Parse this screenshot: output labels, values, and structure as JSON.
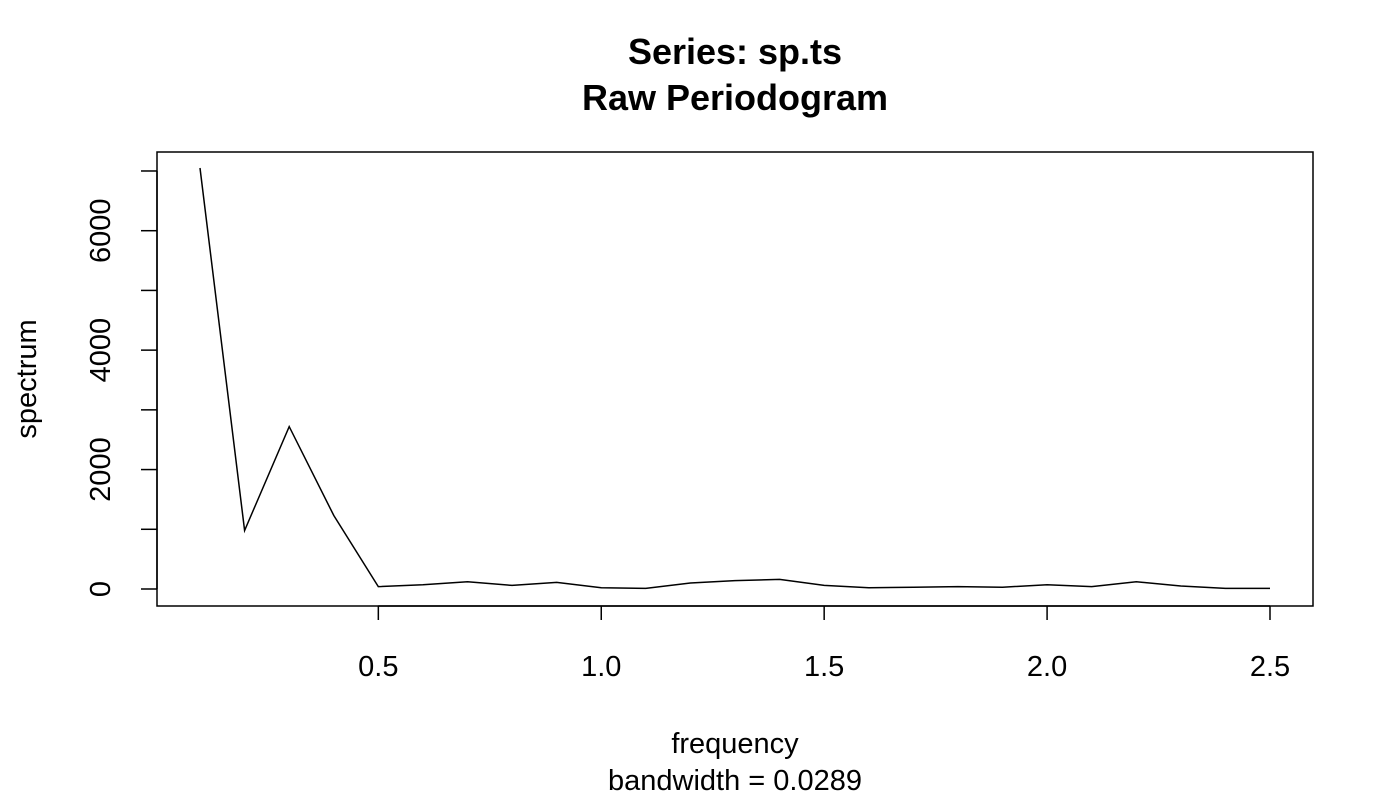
{
  "chart_data": {
    "type": "line",
    "title": "Series: sp.ts",
    "subtitle": "Raw Periodogram",
    "xlabel": "frequency",
    "xsublabel": "bandwidth = 0.0289",
    "ylabel": "spectrum",
    "xlim": [
      0.1,
      2.5
    ],
    "ylim": [
      0,
      7050
    ],
    "x_ticks": [
      0.5,
      1.0,
      1.5,
      2.0,
      2.5
    ],
    "x_tick_labels": [
      "0.5",
      "1.0",
      "1.5",
      "2.0",
      "2.5"
    ],
    "y_ticks": [
      0,
      1000,
      2000,
      3000,
      4000,
      5000,
      6000,
      7000
    ],
    "y_tick_labels": [
      "0",
      "",
      "2000",
      "",
      "4000",
      "",
      "6000",
      ""
    ],
    "grid": false,
    "series": [
      {
        "color": "#000000",
        "x": [
          0.1,
          0.2,
          0.3,
          0.4,
          0.5,
          0.6,
          0.7,
          0.8,
          0.9,
          1.0,
          1.1,
          1.2,
          1.3,
          1.4,
          1.5,
          1.6,
          1.7,
          1.8,
          1.9,
          2.0,
          2.1,
          2.2,
          2.3,
          2.4,
          2.5
        ],
        "y": [
          7050,
          980,
          2720,
          1230,
          40,
          70,
          120,
          60,
          110,
          20,
          10,
          100,
          140,
          160,
          60,
          20,
          30,
          40,
          30,
          70,
          40,
          120,
          50,
          10,
          10
        ]
      }
    ]
  }
}
